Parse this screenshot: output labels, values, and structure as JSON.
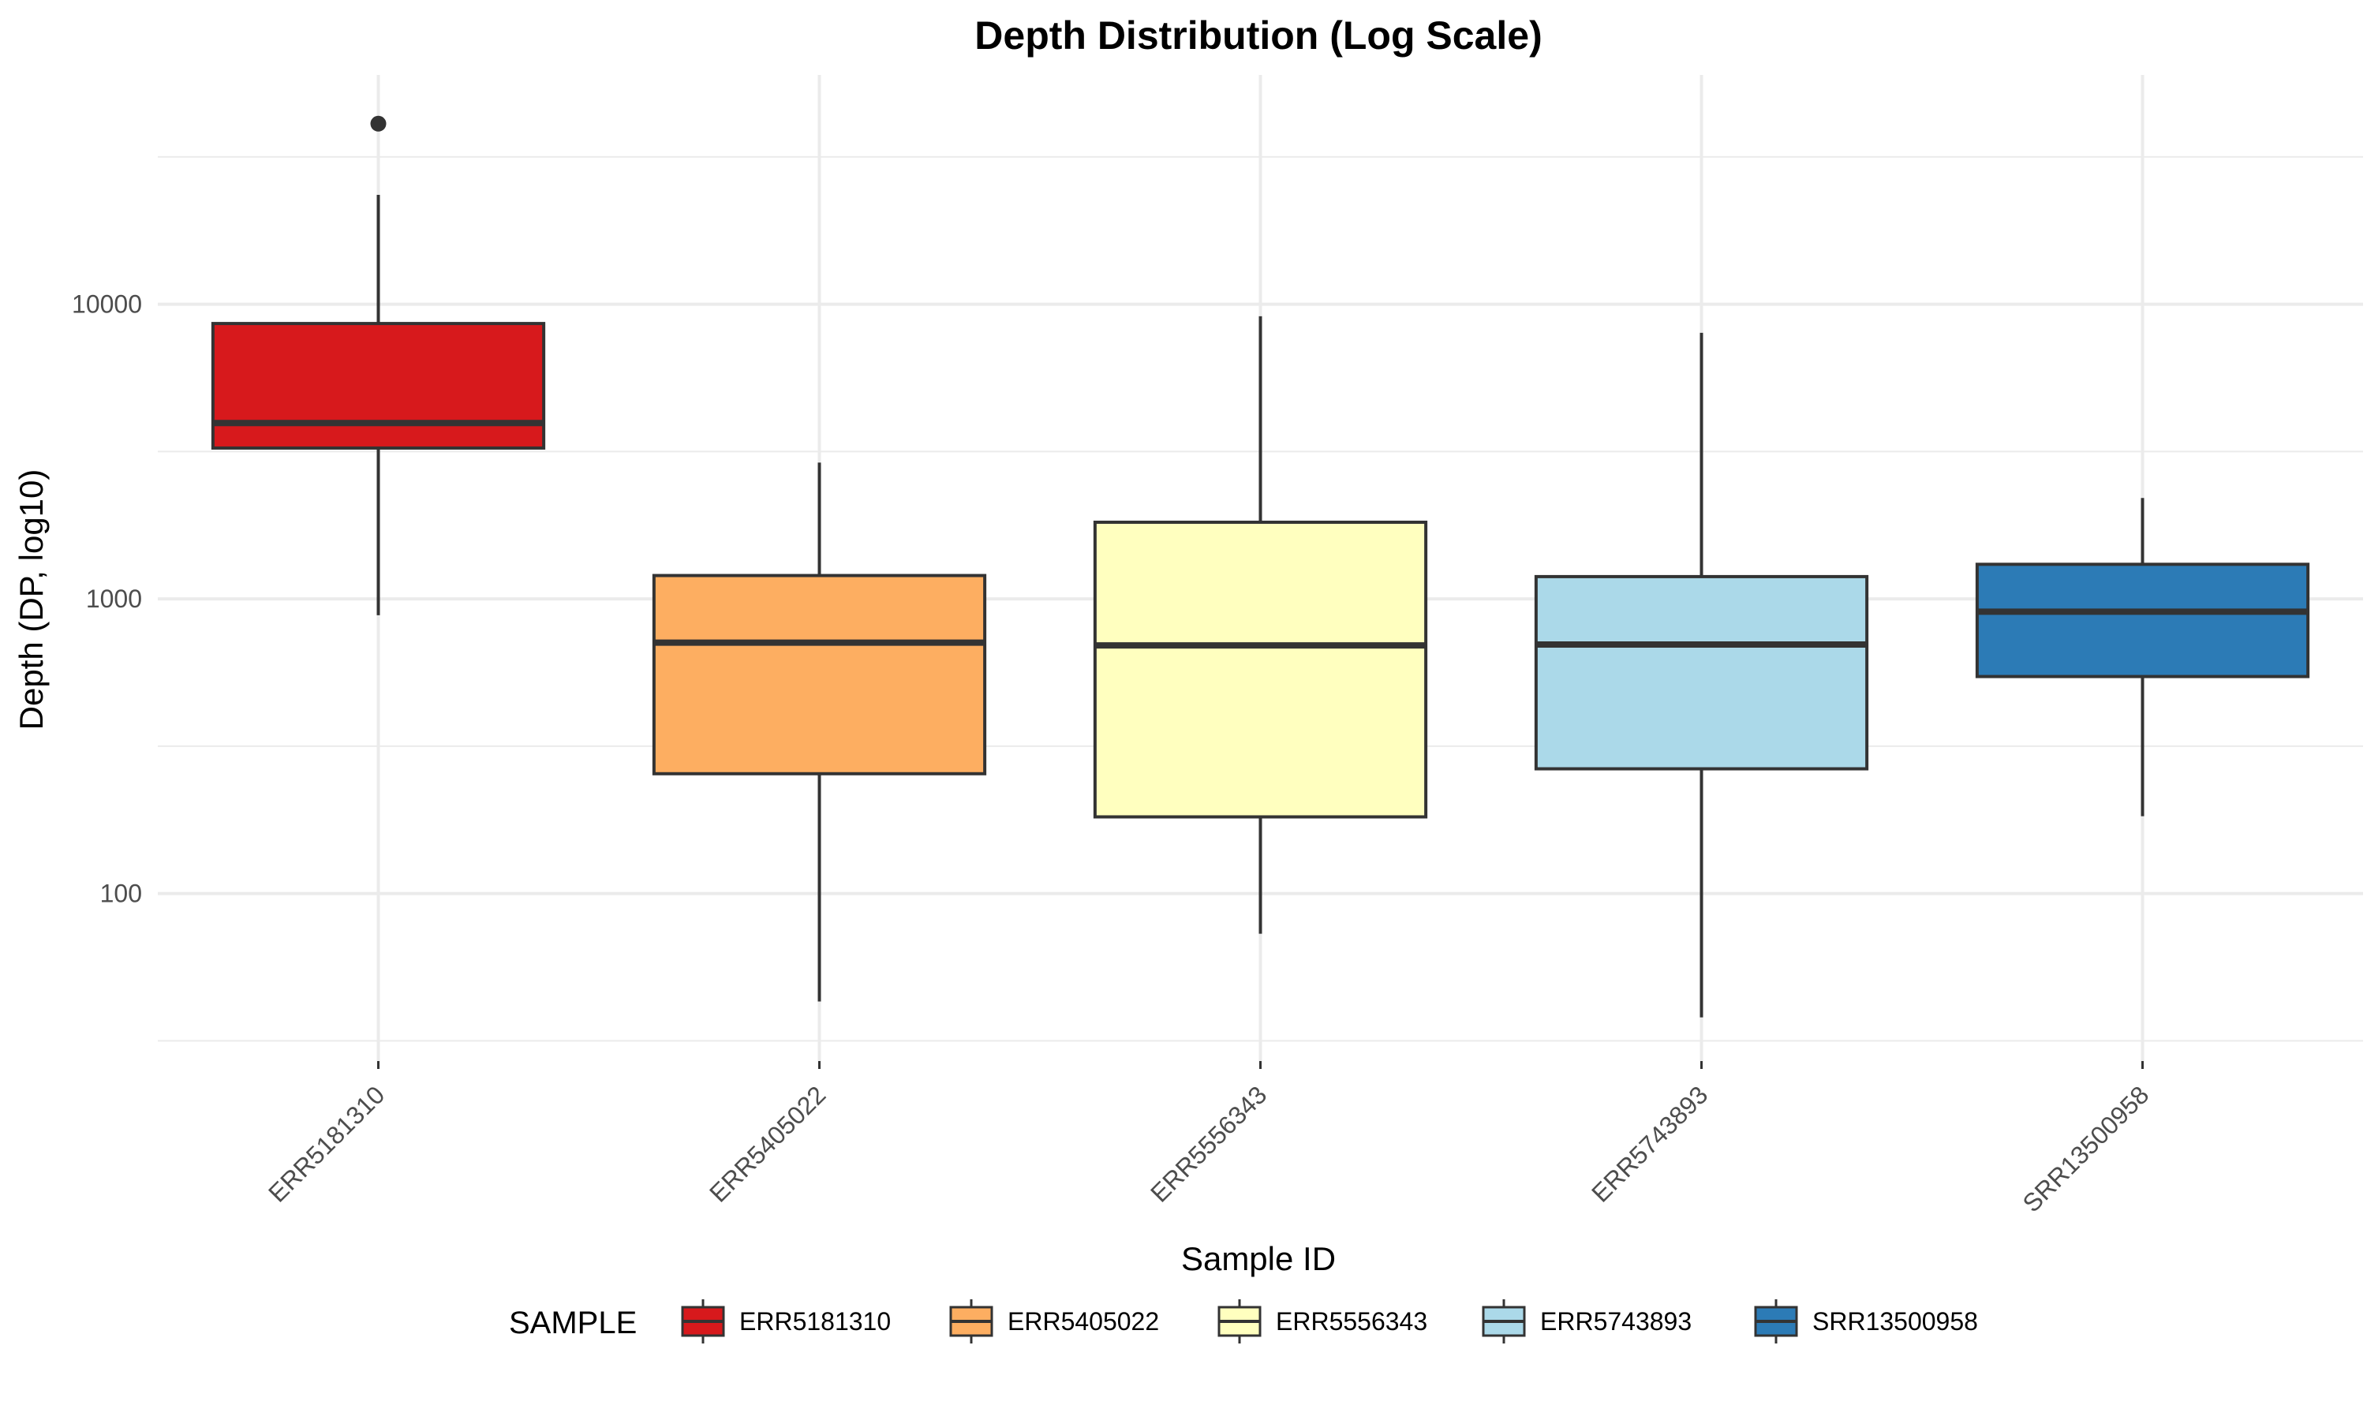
{
  "chart_data": {
    "type": "boxplot",
    "title": "Depth Distribution (Log Scale)",
    "xlabel": "Sample ID",
    "ylabel": "Depth (DP, log10)",
    "y_scale": "log10",
    "ylim": [
      27,
      60000
    ],
    "y_ticks": [
      100,
      1000,
      10000
    ],
    "y_tick_labels": [
      "100",
      "1000",
      "10000"
    ],
    "grid": true,
    "legend": {
      "title": "SAMPLE",
      "position": "bottom"
    },
    "categories": [
      "ERR5181310",
      "ERR5405022",
      "ERR5556343",
      "ERR5743893",
      "SRR13500958"
    ],
    "series": [
      {
        "name": "ERR5181310",
        "color": "#d7191c",
        "whisker_low": 880,
        "q1": 3250,
        "median": 3950,
        "q3": 8600,
        "whisker_high": 23500,
        "outliers": [
          41000
        ]
      },
      {
        "name": "ERR5405022",
        "color": "#fdae61",
        "whisker_low": 43,
        "q1": 255,
        "median": 710,
        "q3": 1200,
        "whisker_high": 2900,
        "outliers": []
      },
      {
        "name": "ERR5556343",
        "color": "#ffffbf",
        "whisker_low": 73,
        "q1": 182,
        "median": 695,
        "q3": 1820,
        "whisker_high": 9100,
        "outliers": []
      },
      {
        "name": "ERR5743893",
        "color": "#abd9e9",
        "whisker_low": 38,
        "q1": 265,
        "median": 700,
        "q3": 1190,
        "whisker_high": 8000,
        "outliers": []
      },
      {
        "name": "SRR13500958",
        "color": "#2c7bb6",
        "whisker_low": 183,
        "q1": 545,
        "median": 905,
        "q3": 1310,
        "whisker_high": 2200,
        "outliers": []
      }
    ]
  }
}
